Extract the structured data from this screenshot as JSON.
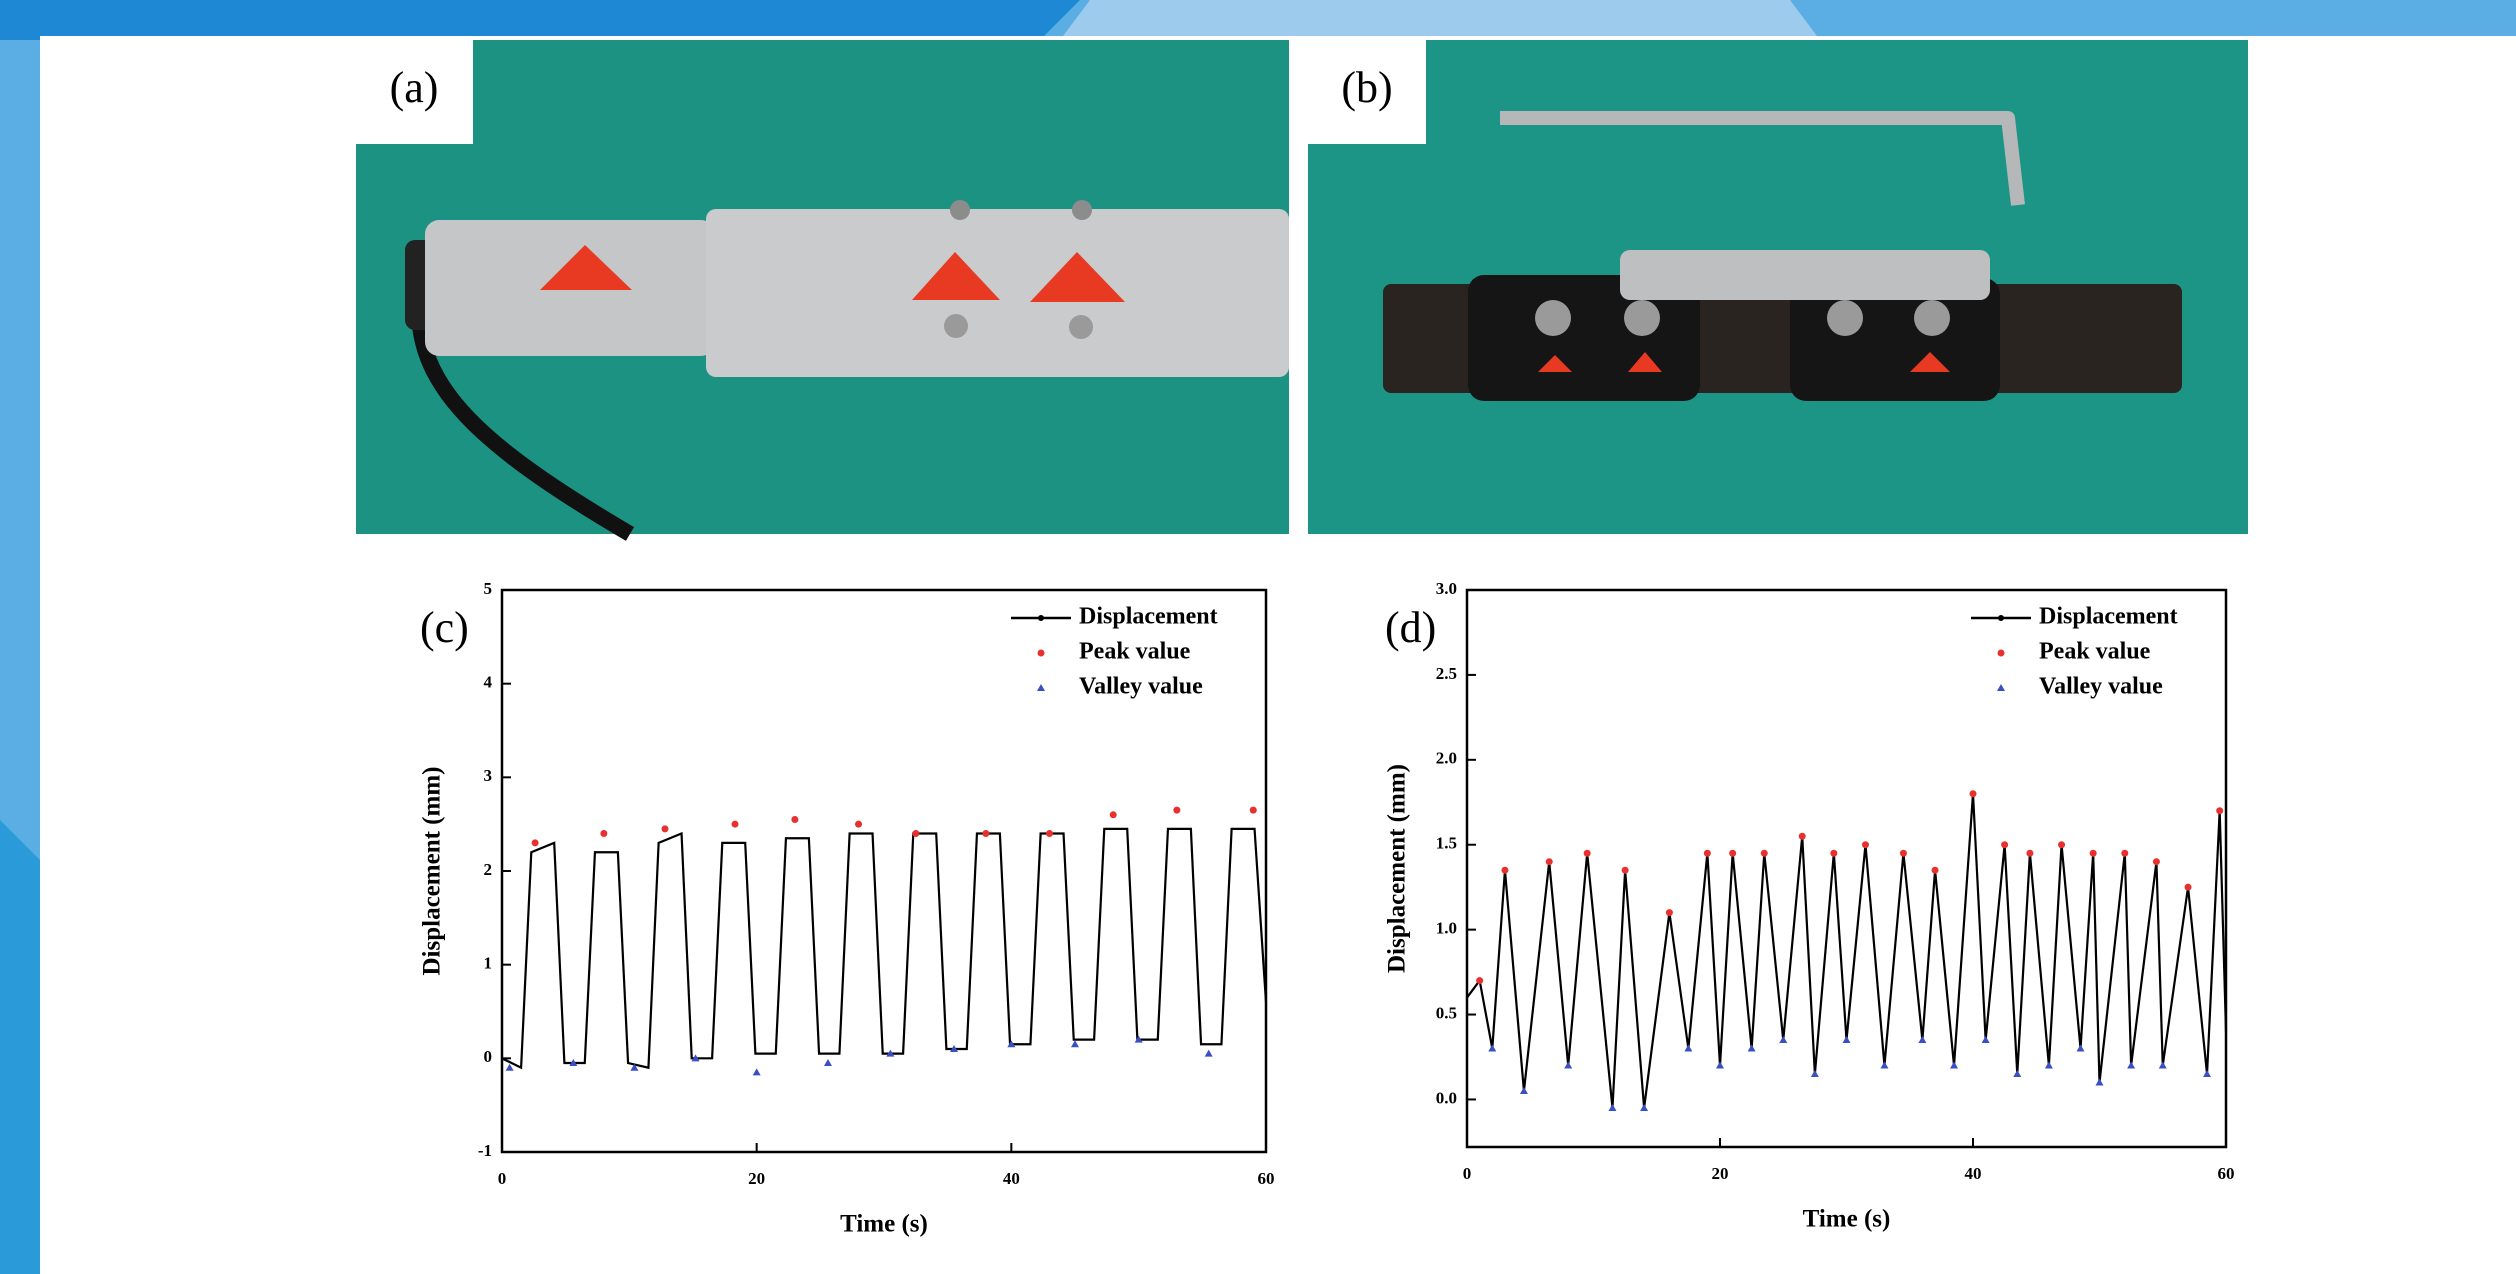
{
  "photos": [
    {
      "label": "(a)"
    },
    {
      "label": "(b)"
    }
  ],
  "chart_data": [
    {
      "type": "line",
      "label": "(c)",
      "xlabel": "Time (s)",
      "ylabel": "Displacement (mm)",
      "xlim": [
        0,
        60
      ],
      "xticks": [
        0,
        20,
        40,
        60
      ],
      "ylim": [
        -1,
        5
      ],
      "yticks": [
        -1,
        0,
        1,
        2,
        3,
        4,
        5
      ],
      "series": [
        {
          "name": "Displacement",
          "color": "#000000",
          "marker": "line",
          "x": [
            0,
            1.5,
            2.3,
            4.1,
            4.9,
            6.5,
            7.3,
            9.1,
            9.9,
            11.5,
            12.3,
            14.1,
            14.9,
            16.5,
            17.3,
            19.1,
            19.9,
            21.5,
            22.3,
            24.1,
            24.9,
            26.5,
            27.3,
            29.1,
            29.9,
            31.5,
            32.3,
            34.1,
            34.9,
            36.5,
            37.3,
            39.1,
            39.9,
            41.5,
            42.3,
            44.1,
            44.9,
            46.5,
            47.3,
            49.1,
            49.9,
            51.5,
            52.3,
            54.1,
            54.9,
            56.5,
            57.3,
            59.1,
            60
          ],
          "values": [
            0,
            -0.1,
            2.2,
            2.3,
            -0.05,
            -0.05,
            2.2,
            2.2,
            -0.05,
            -0.1,
            2.3,
            2.4,
            0,
            0,
            2.3,
            2.3,
            0.05,
            0.05,
            2.35,
            2.35,
            0.05,
            0.05,
            2.4,
            2.4,
            0.05,
            0.05,
            2.4,
            2.4,
            0.1,
            0.1,
            2.4,
            2.4,
            0.15,
            0.15,
            2.4,
            2.4,
            0.2,
            0.2,
            2.45,
            2.45,
            0.2,
            0.2,
            2.45,
            2.45,
            0.15,
            0.15,
            2.45,
            2.45,
            0.6
          ]
        },
        {
          "name": "Peak value",
          "color": "#e8312e",
          "marker": "dot",
          "x": [
            2.6,
            8,
            12.8,
            18.3,
            23,
            28,
            32.5,
            38,
            43,
            48,
            53,
            59
          ],
          "values": [
            2.3,
            2.4,
            2.45,
            2.5,
            2.55,
            2.5,
            2.4,
            2.4,
            2.4,
            2.6,
            2.65,
            2.65
          ]
        },
        {
          "name": "Valley value",
          "color": "#3a4fc4",
          "marker": "triangle",
          "x": [
            0.6,
            5.6,
            10.4,
            15.2,
            20,
            25.6,
            30.5,
            35.5,
            40,
            45,
            50,
            55.5
          ],
          "values": [
            -0.1,
            -0.05,
            -0.1,
            0,
            -0.15,
            -0.05,
            0.05,
            0.1,
            0.15,
            0.15,
            0.2,
            0.05
          ]
        }
      ]
    },
    {
      "type": "line",
      "label": "(d)",
      "xlabel": "Time (s)",
      "ylabel": "Displacement (mm)",
      "xlim": [
        0,
        60
      ],
      "xticks": [
        0,
        20,
        40,
        60
      ],
      "ylim": [
        -0.28,
        3
      ],
      "yticks": [
        {
          "value": 0,
          "label": "0.0"
        },
        0.5,
        {
          "value": 1,
          "label": "1.0"
        },
        1.5,
        {
          "value": 2,
          "label": "2.0"
        },
        2.5,
        {
          "value": 3,
          "label": "3.0"
        }
      ],
      "series": [
        {
          "name": "Displacement",
          "color": "#000000",
          "marker": "line",
          "x": [
            0,
            1,
            2,
            3,
            4.5,
            6.5,
            8,
            9.5,
            11.5,
            12.5,
            14,
            16,
            17.5,
            19,
            20,
            21,
            22.5,
            23.5,
            25,
            26.5,
            27.5,
            29,
            30,
            31.5,
            33,
            34.5,
            36,
            37,
            38.5,
            40,
            41,
            42.5,
            43.5,
            44.5,
            46,
            47,
            48.5,
            49.5,
            50,
            52,
            52.5,
            54.5,
            55,
            57,
            58.5,
            59.5,
            60
          ],
          "values": [
            0.6,
            0.7,
            0.3,
            1.35,
            0.05,
            1.4,
            0.2,
            1.45,
            -0.05,
            1.35,
            -0.05,
            1.1,
            0.3,
            1.45,
            0.2,
            1.45,
            0.3,
            1.45,
            0.35,
            1.55,
            0.15,
            1.45,
            0.35,
            1.5,
            0.2,
            1.45,
            0.35,
            1.35,
            0.2,
            1.8,
            0.35,
            1.5,
            0.15,
            1.45,
            0.2,
            1.5,
            0.3,
            1.45,
            0.1,
            1.45,
            0.2,
            1.4,
            0.2,
            1.25,
            0.15,
            1.7,
            0.4
          ]
        },
        {
          "name": "Peak value",
          "color": "#e8312e",
          "marker": "dot",
          "x": [
            1,
            3,
            6.5,
            9.5,
            12.5,
            16,
            19,
            21,
            23.5,
            26.5,
            29,
            31.5,
            34.5,
            37,
            40,
            42.5,
            44.5,
            47,
            49.5,
            52,
            54.5,
            57,
            59.5
          ],
          "values": [
            0.7,
            1.35,
            1.4,
            1.45,
            1.35,
            1.1,
            1.45,
            1.45,
            1.45,
            1.55,
            1.45,
            1.5,
            1.45,
            1.35,
            1.8,
            1.5,
            1.45,
            1.5,
            1.45,
            1.45,
            1.4,
            1.25,
            1.7
          ]
        },
        {
          "name": "Valley value",
          "color": "#3a4fc4",
          "marker": "triangle",
          "x": [
            2,
            4.5,
            8,
            11.5,
            14,
            17.5,
            20,
            22.5,
            25,
            27.5,
            30,
            33,
            36,
            38.5,
            41,
            43.5,
            46,
            48.5,
            50,
            52.5,
            55,
            58.5
          ],
          "values": [
            0.3,
            0.05,
            0.2,
            -0.05,
            -0.05,
            0.3,
            0.2,
            0.3,
            0.35,
            0.15,
            0.35,
            0.2,
            0.35,
            0.2,
            0.35,
            0.15,
            0.2,
            0.3,
            0.1,
            0.2,
            0.2,
            0.15
          ]
        }
      ]
    }
  ]
}
